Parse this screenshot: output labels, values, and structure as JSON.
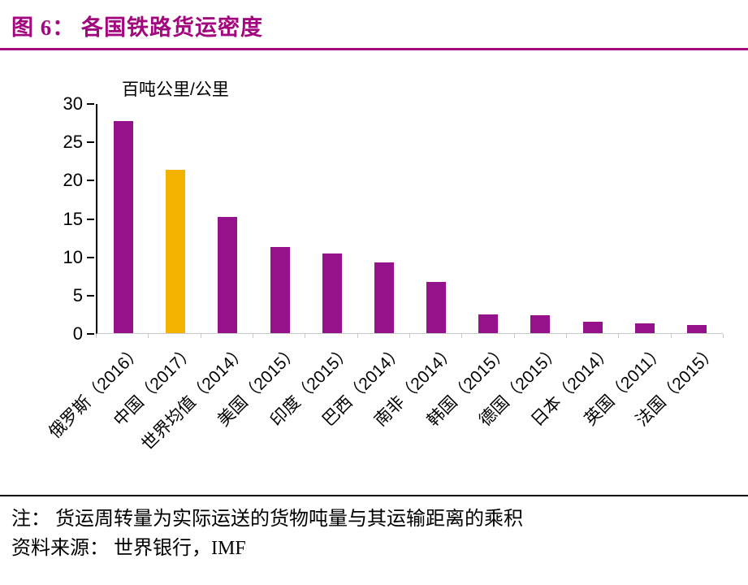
{
  "figure": {
    "title": "图 6：  各国铁路货运密度"
  },
  "colors": {
    "accent": "#A2077E",
    "bar": "#96128A",
    "highlight": "#F2B200",
    "axis": "#000000",
    "baseline": "#C8C8C8"
  },
  "chart_data": {
    "type": "bar",
    "title": "各国铁路货运密度",
    "unit_label": "百吨公里/公里",
    "categories": [
      "俄罗斯（2016）",
      "中国（2017）",
      "世界均值（2014）",
      "美国（2015）",
      "印度（2015）",
      "巴西（2014）",
      "南非（2014）",
      "韩国（2015）",
      "德国（2015）",
      "日本（2014）",
      "英国（2011）",
      "法国（2015）"
    ],
    "values": [
      27.7,
      21.3,
      15.2,
      11.2,
      10.4,
      9.2,
      6.7,
      2.4,
      2.3,
      1.5,
      1.3,
      1.1
    ],
    "highlight_index": 1,
    "ylim": [
      0,
      30
    ],
    "yticks": [
      0,
      5,
      10,
      15,
      20,
      25,
      30
    ],
    "grid": false,
    "legend": "none"
  },
  "notes": {
    "line1": "注： 货运周转量为实际运送的货物吨量与其运输距离的乘积",
    "line2": "资料来源： 世界银行，IMF"
  }
}
